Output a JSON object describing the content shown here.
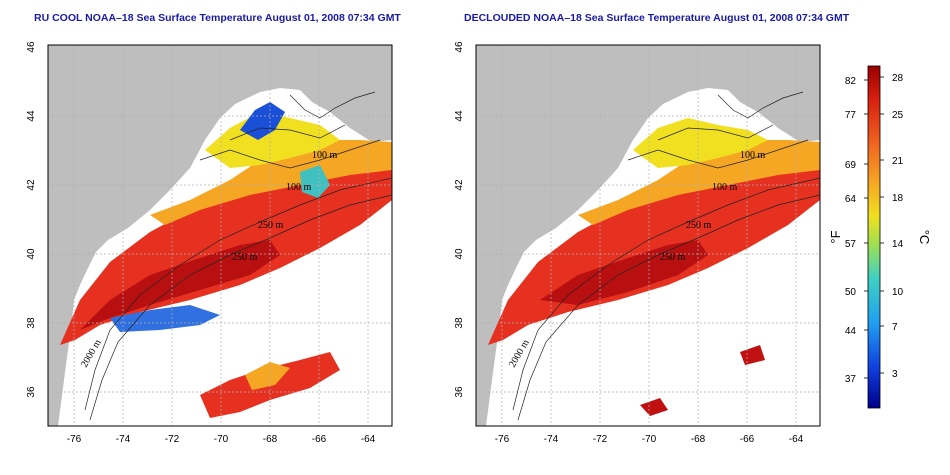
{
  "panels": [
    {
      "title": "RU COOL NOAA–18 Sea Surface Temperature August 01, 2008 07:34 GMT"
    },
    {
      "title": "DECLOUDED NOAA–18 Sea Surface Temperature August 01, 2008 07:34 GMT"
    }
  ],
  "axes": {
    "x_ticks": [
      "-76",
      "-74",
      "-72",
      "-70",
      "-68",
      "-66",
      "-64"
    ],
    "y_ticks": [
      "36",
      "38",
      "40",
      "42",
      "44",
      "46"
    ],
    "x_range": [
      -77.3,
      -62.8
    ],
    "y_range": [
      35.0,
      46.0
    ]
  },
  "isobath_labels": [
    "100 m",
    "100 m",
    "250 m",
    "250 m",
    "2000 m"
  ],
  "colorbar": {
    "fahrenheit_label": "°F",
    "celsius_label": "°C",
    "fahrenheit_ticks": [
      "82",
      "77",
      "69",
      "64",
      "57",
      "50",
      "44",
      "37"
    ],
    "celsius_ticks": [
      "28",
      "25",
      "21",
      "18",
      "14",
      "10",
      "7",
      "3"
    ],
    "colors": {
      "max": "#a00000",
      "high": "#e83020",
      "warm": "#f5a623",
      "mid": "#f0e020",
      "cool": "#40c0c0",
      "cold": "#1060e0",
      "min": "#00008b"
    }
  },
  "colors": {
    "land": "#bebebe",
    "ocean_nodata": "#ffffff",
    "grid": "#b0b0b0"
  }
}
